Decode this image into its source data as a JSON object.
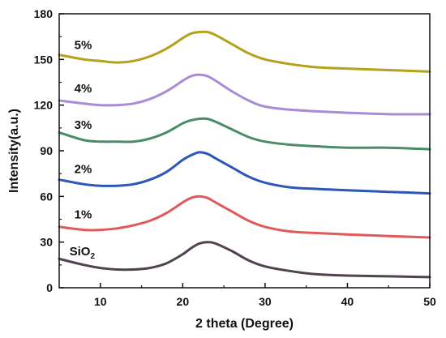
{
  "chart_data": {
    "type": "line",
    "xlabel": "2 theta (Degree)",
    "ylabel": "Intensity(a.u.)",
    "xlim": [
      5,
      50
    ],
    "ylim": [
      0,
      180
    ],
    "xticks": [
      10,
      20,
      30,
      40,
      50
    ],
    "yticks": [
      0,
      30,
      60,
      90,
      120,
      150,
      180
    ],
    "x": [
      5,
      8,
      10,
      12,
      14,
      16,
      18,
      20,
      21,
      22,
      23,
      24,
      26,
      28,
      30,
      33,
      36,
      40,
      45,
      50
    ],
    "series": [
      {
        "name": "SiO",
        "name_subscript": "2",
        "color": "#4f4350",
        "values": [
          19,
          15,
          13,
          12,
          12,
          13,
          16,
          22,
          26,
          29,
          30,
          29,
          24,
          18,
          14,
          11,
          9,
          8,
          7.5,
          7
        ]
      },
      {
        "name": "1%",
        "color": "#e05a5c",
        "values": [
          40,
          38,
          38,
          39,
          41,
          44,
          49,
          56,
          59,
          60,
          59,
          56,
          50,
          44,
          40,
          37,
          36,
          35,
          34,
          33
        ]
      },
      {
        "name": "2%",
        "color": "#2c56b8",
        "values": [
          71,
          68,
          67,
          67,
          68,
          71,
          76,
          84,
          87,
          89,
          88,
          85,
          79,
          73,
          69,
          66,
          65,
          64,
          63,
          62
        ]
      },
      {
        "name": "3%",
        "color": "#4a8c6a",
        "values": [
          102,
          97,
          96,
          96,
          96,
          98,
          102,
          108,
          110,
          111,
          111,
          109,
          104,
          99,
          96,
          94,
          93,
          92,
          92,
          91
        ]
      },
      {
        "name": "4%",
        "color": "#a98bd8",
        "values": [
          123,
          121,
          120,
          120,
          121,
          124,
          129,
          136,
          139,
          140,
          139,
          136,
          129,
          123,
          119,
          117,
          116,
          115,
          114,
          114
        ]
      },
      {
        "name": "5%",
        "color": "#b5a11c",
        "values": [
          153,
          150,
          149,
          148,
          149,
          152,
          157,
          164,
          167,
          168,
          168,
          166,
          160,
          154,
          150,
          147,
          145,
          144,
          143,
          142
        ]
      }
    ]
  }
}
